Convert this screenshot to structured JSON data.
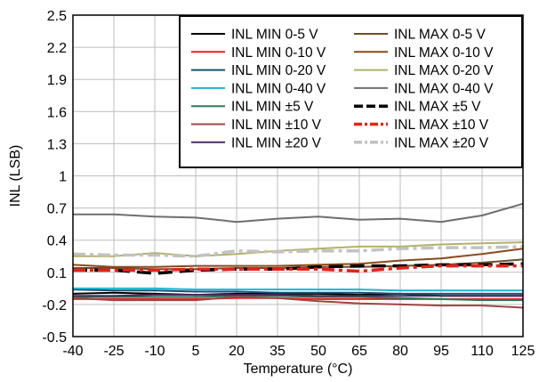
{
  "chart_data": {
    "type": "line",
    "xlabel": "Temperature (°C)",
    "ylabel": "INL (LSB)",
    "x": [
      -40,
      -25,
      -10,
      5,
      20,
      35,
      50,
      65,
      80,
      95,
      110,
      125
    ],
    "x_ticks": [
      "-40",
      "-25",
      "-10",
      "5",
      "20",
      "35",
      "50",
      "65",
      "80",
      "95",
      "110",
      "125"
    ],
    "xlim": [
      -40,
      125
    ],
    "ylim": [
      -0.5,
      2.5
    ],
    "y_ticks": [
      -0.5,
      -0.2,
      0.1,
      0.4,
      0.7,
      1,
      1.3,
      1.6,
      1.9,
      2.2,
      2.5
    ],
    "y_tick_labels": [
      "-0.5",
      "-0.2",
      "0.1",
      "0.4",
      "0.7",
      "1",
      "1.3",
      "1.6",
      "1.9",
      "2.2",
      "2.5"
    ],
    "grid": true,
    "legend_position": "top-right",
    "series": [
      {
        "name": "INL MIN 0-5 V",
        "color": "#000000",
        "dash": "solid",
        "width": 2,
        "values": [
          -0.1,
          -0.09,
          -0.1,
          -0.11,
          -0.1,
          -0.1,
          -0.1,
          -0.11,
          -0.1,
          -0.12,
          -0.12,
          -0.12
        ]
      },
      {
        "name": "INL MIN 0-10 V",
        "color": "#e8201a",
        "dash": "solid",
        "width": 2,
        "values": [
          -0.15,
          -0.15,
          -0.15,
          -0.15,
          -0.14,
          -0.14,
          -0.15,
          -0.15,
          -0.15,
          -0.15,
          -0.15,
          -0.15
        ]
      },
      {
        "name": "INL MIN 0-20 V",
        "color": "#1b4f72",
        "dash": "solid",
        "width": 2,
        "values": [
          -0.06,
          -0.07,
          -0.07,
          -0.08,
          -0.08,
          -0.09,
          -0.09,
          -0.09,
          -0.1,
          -0.1,
          -0.1,
          -0.1
        ]
      },
      {
        "name": "INL MIN 0-40 V",
        "color": "#1ab7d2",
        "dash": "solid",
        "width": 2,
        "values": [
          -0.05,
          -0.05,
          -0.05,
          -0.06,
          -0.06,
          -0.06,
          -0.06,
          -0.06,
          -0.07,
          -0.07,
          -0.07,
          -0.07
        ]
      },
      {
        "name": "INL MIN ±5 V",
        "color": "#2a7a55",
        "dash": "solid",
        "width": 2,
        "values": [
          -0.13,
          -0.13,
          -0.13,
          -0.13,
          -0.12,
          -0.12,
          -0.13,
          -0.13,
          -0.14,
          -0.15,
          -0.16,
          -0.16
        ]
      },
      {
        "name": "INL MIN ±10 V",
        "color": "#a04545",
        "dash": "solid",
        "width": 2,
        "values": [
          -0.14,
          -0.16,
          -0.16,
          -0.16,
          -0.13,
          -0.14,
          -0.17,
          -0.19,
          -0.2,
          -0.21,
          -0.21,
          -0.23
        ]
      },
      {
        "name": "INL MIN ±20 V",
        "color": "#4e2a64",
        "dash": "solid",
        "width": 2,
        "values": [
          -0.12,
          -0.12,
          -0.11,
          -0.11,
          -0.11,
          -0.11,
          -0.12,
          -0.12,
          -0.12,
          -0.12,
          -0.12,
          -0.12
        ]
      },
      {
        "name": "INL MAX 0-5 V",
        "color": "#6a4f2a",
        "dash": "solid",
        "width": 2,
        "values": [
          0.14,
          0.14,
          0.13,
          0.13,
          0.14,
          0.14,
          0.15,
          0.15,
          0.16,
          0.17,
          0.19,
          0.22
        ]
      },
      {
        "name": "INL MAX 0-10 V",
        "color": "#8a4a1c",
        "dash": "solid",
        "width": 2,
        "values": [
          0.17,
          0.15,
          0.15,
          0.16,
          0.16,
          0.16,
          0.17,
          0.18,
          0.21,
          0.23,
          0.27,
          0.32
        ]
      },
      {
        "name": "INL MAX 0-20 V",
        "color": "#b3b06a",
        "dash": "solid",
        "width": 2,
        "values": [
          0.25,
          0.25,
          0.28,
          0.25,
          0.27,
          0.3,
          0.32,
          0.34,
          0.34,
          0.36,
          0.37,
          0.38
        ]
      },
      {
        "name": "INL MAX 0-40 V",
        "color": "#6e6e6e",
        "dash": "solid",
        "width": 2,
        "values": [
          0.64,
          0.64,
          0.62,
          0.61,
          0.57,
          0.6,
          0.62,
          0.59,
          0.6,
          0.57,
          0.63,
          0.74
        ]
      },
      {
        "name": "INL MAX ±5 V",
        "color": "#000000",
        "dash": "dashed",
        "width": 3.5,
        "values": [
          0.12,
          0.12,
          0.09,
          0.12,
          0.13,
          0.13,
          0.15,
          0.16,
          0.16,
          0.17,
          0.17,
          0.18
        ]
      },
      {
        "name": "INL MAX ±10 V",
        "color": "#e8201a",
        "dash": "dashdot",
        "width": 3.5,
        "values": [
          0.12,
          0.12,
          0.12,
          0.13,
          0.13,
          0.13,
          0.13,
          0.11,
          0.14,
          0.16,
          0.16,
          0.16
        ]
      },
      {
        "name": "INL MAX ±20 V",
        "color": "#c2c2c2",
        "dash": "dashdot",
        "width": 3.5,
        "values": [
          0.27,
          0.26,
          0.26,
          0.25,
          0.3,
          0.29,
          0.3,
          0.3,
          0.32,
          0.33,
          0.33,
          0.34
        ]
      }
    ]
  }
}
